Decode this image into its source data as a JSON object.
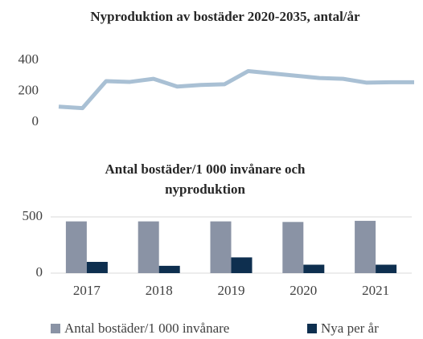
{
  "chart_data": [
    {
      "type": "line",
      "title": "Nyproduktion av bostäder 2020-2035, antal/år",
      "values": [
        100,
        90,
        265,
        260,
        280,
        230,
        240,
        245,
        330,
        315,
        300,
        285,
        280,
        255,
        258,
        258
      ],
      "color": "#a9c0d4",
      "ylim": [
        0,
        400
      ],
      "yticks": [
        0,
        200,
        400
      ],
      "grid": false
    },
    {
      "type": "bar",
      "title": "Antal bostäder/1 000 invånare och nyproduktion",
      "categories": [
        "2017",
        "2018",
        "2019",
        "2020",
        "2021"
      ],
      "series": [
        {
          "name": "Antal bostäder/1 000 invånare",
          "color": "#8a93a5",
          "values": [
            460,
            460,
            460,
            455,
            465
          ]
        },
        {
          "name": "Nya per år",
          "color": "#0e2f4f",
          "values": [
            100,
            65,
            140,
            75,
            75
          ]
        }
      ],
      "ylim": [
        0,
        500
      ],
      "yticks": [
        0,
        500
      ],
      "grid": true,
      "legend": "bottom"
    }
  ]
}
